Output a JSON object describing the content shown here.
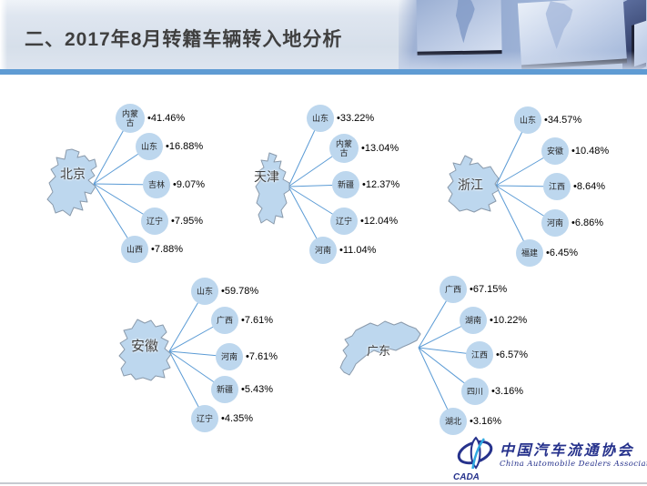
{
  "slide": {
    "title": "二、2017年8月转籍车辆转入地分析"
  },
  "marker": "•",
  "groups": [
    {
      "region": "北京",
      "sources": [
        {
          "label": "内蒙古",
          "value": "41.46%"
        },
        {
          "label": "山东",
          "value": "16.88%"
        },
        {
          "label": "吉林",
          "value": "9.07%"
        },
        {
          "label": "辽宁",
          "value": "7.95%"
        },
        {
          "label": "山西",
          "value": "7.88%"
        }
      ]
    },
    {
      "region": "天津",
      "sources": [
        {
          "label": "山东",
          "value": "33.22%"
        },
        {
          "label": "内蒙古",
          "value": "13.04%"
        },
        {
          "label": "新疆",
          "value": "12.37%"
        },
        {
          "label": "辽宁",
          "value": "12.04%"
        },
        {
          "label": "河南",
          "value": "11.04%"
        }
      ]
    },
    {
      "region": "浙江",
      "sources": [
        {
          "label": "山东",
          "value": "34.57%"
        },
        {
          "label": "安徽",
          "value": "10.48%"
        },
        {
          "label": "江西",
          "value": "8.64%"
        },
        {
          "label": "河南",
          "value": "6.86%"
        },
        {
          "label": "福建",
          "value": "6.45%"
        }
      ]
    },
    {
      "region": "安徽",
      "sources": [
        {
          "label": "山东",
          "value": "59.78%"
        },
        {
          "label": "广西",
          "value": "7.61%"
        },
        {
          "label": "河南",
          "value": "7.61%"
        },
        {
          "label": "新疆",
          "value": "5.43%"
        },
        {
          "label": "辽宁",
          "value": "4.35%"
        }
      ]
    },
    {
      "region": "广东",
      "sources": [
        {
          "label": "广西",
          "value": "67.15%"
        },
        {
          "label": "湖南",
          "value": "10.22%"
        },
        {
          "label": "江西",
          "value": "6.57%"
        },
        {
          "label": "四川",
          "value": "3.16%"
        },
        {
          "label": "湖北",
          "value": "3.16%"
        }
      ]
    }
  ],
  "logo": {
    "acronym": "CADA",
    "name_cn": "中国汽车流通协会",
    "name_en": "China Automobile Dealers Association"
  },
  "colors": {
    "accent_bar": "#5F9BD3",
    "link_line": "#5B9BD5",
    "node_fill": "#BDD7EE",
    "map_fill": "#BDD7EE",
    "map_stroke": "#8A9AAB",
    "title_text": "#3F3F3F",
    "logo_navy": "#26328C"
  }
}
